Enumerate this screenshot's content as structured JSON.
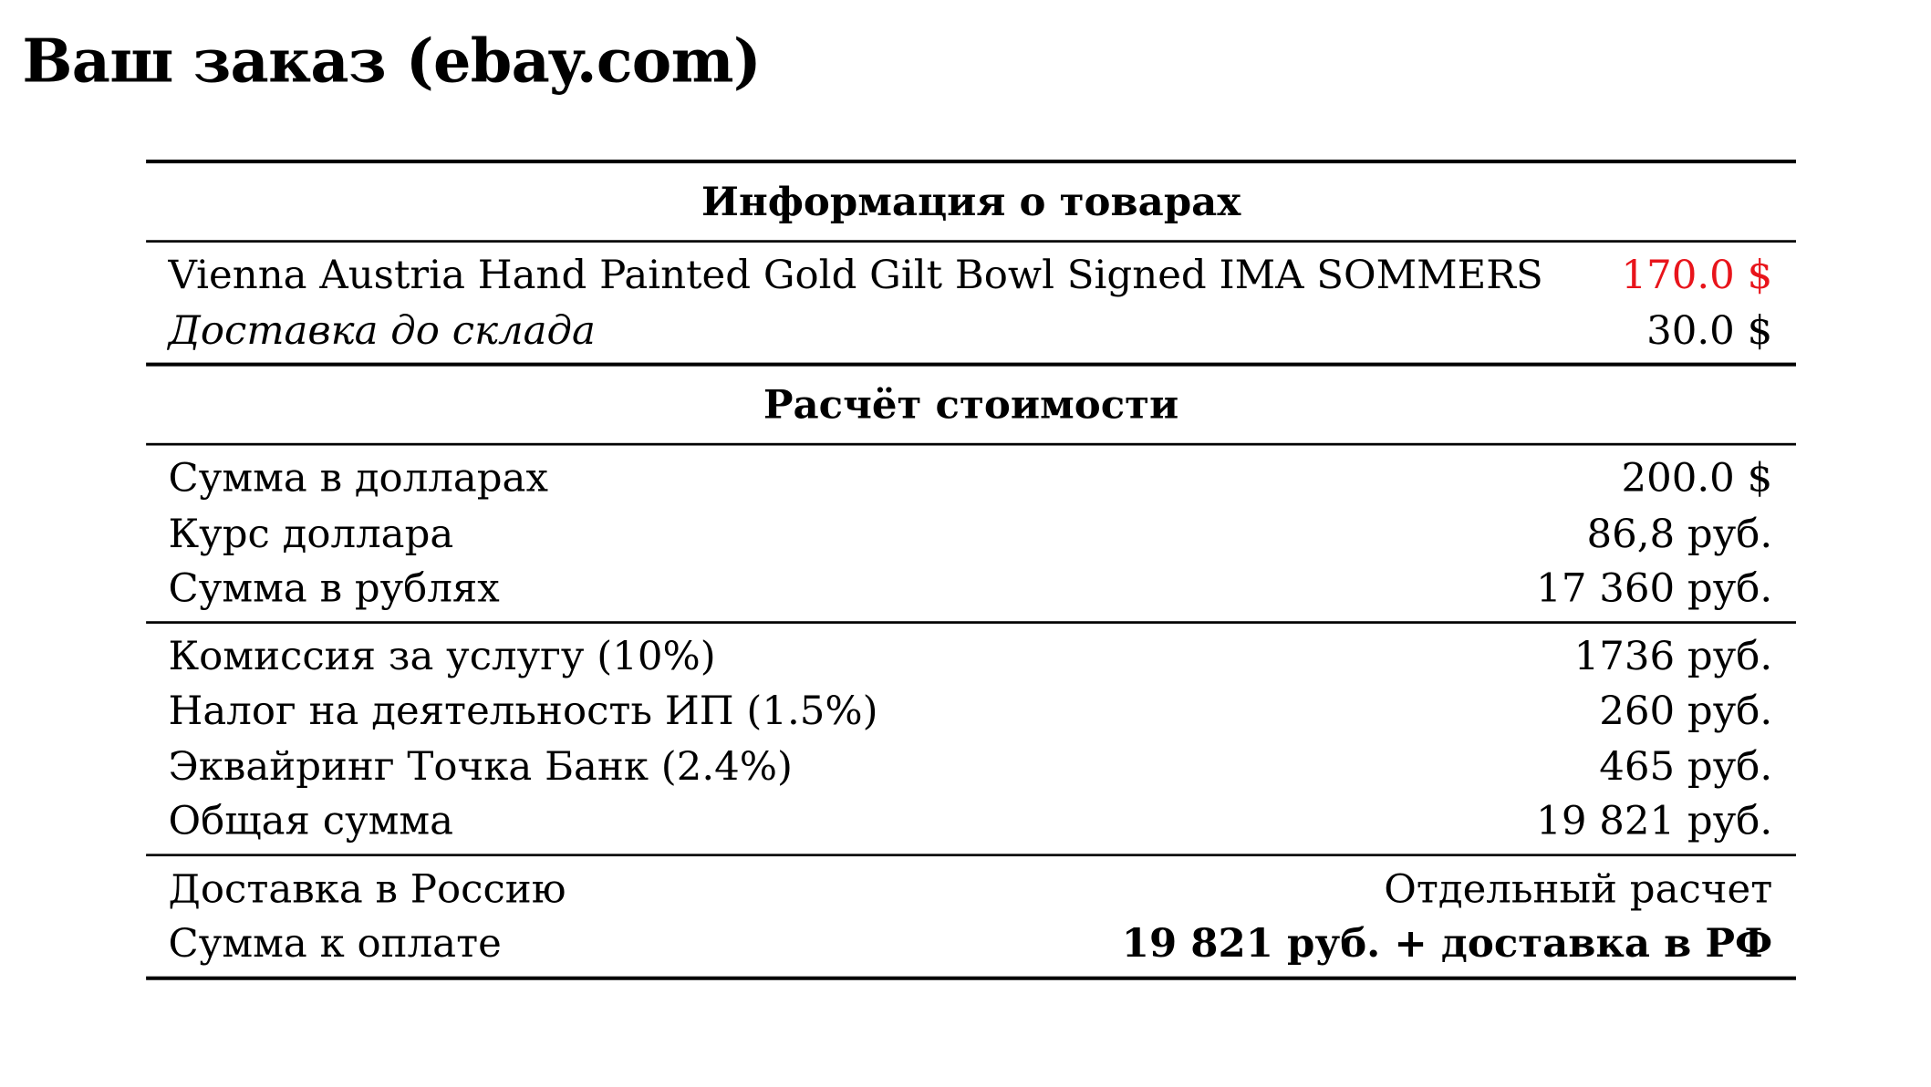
{
  "title": "Ваш заказ (ebay.com)",
  "colors": {
    "item_price": "#e8141b"
  },
  "sections": {
    "items_header": "Информация о товарах",
    "items": [
      {
        "label": "Vienna Austria Hand Painted Gold Gilt Bowl Signed IMA SOMMERS",
        "value": "170.0 $"
      },
      {
        "label": "Доставка до склада",
        "value": "30.0 $"
      }
    ],
    "calc_header": "Расчёт стоимости",
    "calc": [
      {
        "label": "Сумма в долларах",
        "value": "200.0 $"
      },
      {
        "label": "Курс доллара",
        "value": "86,8 руб."
      },
      {
        "label": "Сумма в рублях",
        "value": "17 360 руб."
      }
    ],
    "fees": [
      {
        "label": "Комиссия за услугу (10%)",
        "value": "1736 руб."
      },
      {
        "label": "Налог на деятельность ИП (1.5%)",
        "value": "260 руб."
      },
      {
        "label": "Эквайринг Точка Банк (2.4%)",
        "value": "465 руб."
      },
      {
        "label": "Общая сумма",
        "value": "19 821 руб."
      }
    ],
    "final": [
      {
        "label": "Доставка в Россию",
        "value": "Отдельный расчет"
      },
      {
        "label": "Сумма к оплате",
        "value": "19 821 руб. + доставка в РФ"
      }
    ]
  }
}
